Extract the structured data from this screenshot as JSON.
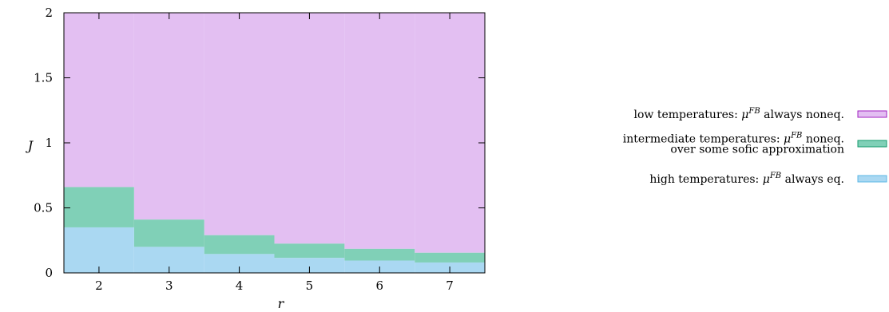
{
  "chart_data": {
    "type": "area",
    "xlabel": "r",
    "ylabel": "J",
    "xlim": [
      1.5,
      7.5
    ],
    "ylim": [
      0,
      2
    ],
    "xticks": [
      "2",
      "3",
      "4",
      "5",
      "6",
      "7"
    ],
    "yticks": [
      "0",
      "0.5",
      "1",
      "1.5",
      "2"
    ],
    "categories": [
      2,
      3,
      4,
      5,
      6,
      7
    ],
    "series": [
      {
        "name": "high temperatures: μ^{FB} always eq.",
        "label_lines": [
          "high temperatures: μ^FB always eq."
        ],
        "color": "#aad8f2",
        "border": "#5cb7e6",
        "upper": [
          0.35,
          0.2,
          0.145,
          0.115,
          0.095,
          0.08
        ]
      },
      {
        "name": "intermediate temperatures: μ^{FB} noneq. over some sofic approximation",
        "label_lines": [
          "intermediate temperatures: μ^FB noneq.",
          "over some sofic approximation"
        ],
        "color": "#80d0b7",
        "border": "#159a6d",
        "upper": [
          0.66,
          0.41,
          0.29,
          0.225,
          0.185,
          0.155
        ]
      },
      {
        "name": "low temperatures: μ^{FB} always noneq.",
        "label_lines": [
          "low temperatures: μ^FB always noneq."
        ],
        "color": "#e3bff2",
        "border": "#a020c0",
        "upper": [
          2,
          2,
          2,
          2,
          2,
          2
        ]
      }
    ],
    "legend_position": "right",
    "grid": false
  }
}
